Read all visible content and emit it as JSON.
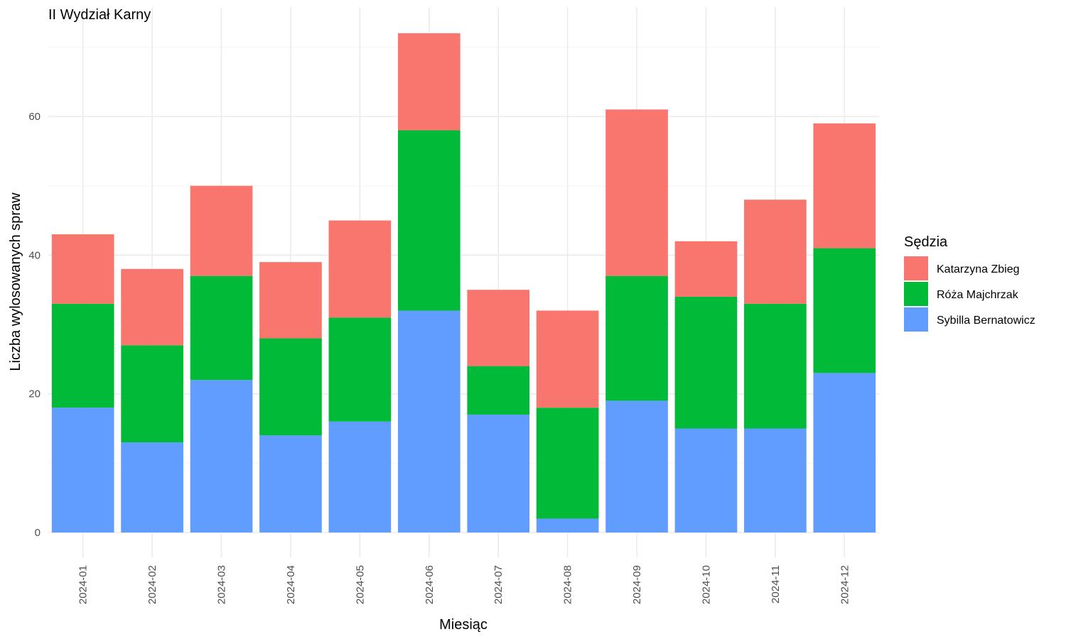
{
  "chart_data": {
    "type": "bar",
    "stacked": true,
    "title": "II Wydział Karny",
    "xlabel": "Miesiąc",
    "ylabel": "Liczba wylosowanych spraw",
    "ylim": [
      0,
      72
    ],
    "yticks": [
      0,
      20,
      40,
      60
    ],
    "grid": true,
    "legend_position": "right",
    "legend_title": "Sędzia",
    "categories": [
      "2024-01",
      "2024-02",
      "2024-03",
      "2024-04",
      "2024-05",
      "2024-06",
      "2024-07",
      "2024-08",
      "2024-09",
      "2024-10",
      "2024-11",
      "2024-12"
    ],
    "series": [
      {
        "name": "Sybilla Bernatowicz",
        "color": "#619CFF",
        "values": [
          18,
          13,
          22,
          14,
          16,
          32,
          17,
          2,
          19,
          15,
          15,
          23
        ]
      },
      {
        "name": "Róża Majchrzak",
        "color": "#00BA38",
        "values": [
          15,
          14,
          15,
          14,
          15,
          26,
          7,
          16,
          18,
          19,
          18,
          18
        ]
      },
      {
        "name": "Katarzyna Zbieg",
        "color": "#F8766D",
        "values": [
          10,
          11,
          13,
          11,
          14,
          14,
          11,
          14,
          24,
          8,
          15,
          18
        ]
      }
    ],
    "legend_order": [
      "Katarzyna Zbieg",
      "Róża Majchrzak",
      "Sybilla Bernatowicz"
    ]
  }
}
